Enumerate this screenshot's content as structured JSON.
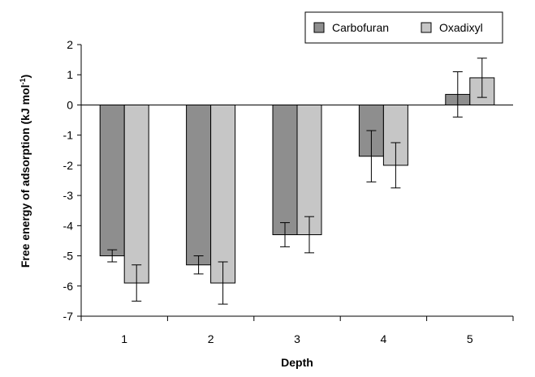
{
  "chart_data": {
    "type": "bar",
    "title": "",
    "xlabel": "Depth",
    "ylabel": "Free energy of adsorption (kJ mol",
    "ylabel_superscript": "-1",
    "ylabel_close": ")",
    "categories": [
      "1",
      "2",
      "3",
      "4",
      "5"
    ],
    "ylim": [
      -7,
      2
    ],
    "yticks": [
      2,
      1,
      0,
      -1,
      -2,
      -3,
      -4,
      -5,
      -6,
      -7
    ],
    "grid": false,
    "legend_position": "top-right",
    "series": [
      {
        "name": "Carbofuran",
        "color": "#8e8e8e",
        "values": [
          -5.0,
          -5.3,
          -4.3,
          -1.7,
          0.35
        ],
        "errors": [
          0.2,
          0.3,
          0.4,
          0.85,
          0.75
        ]
      },
      {
        "name": "Oxadixyl",
        "color": "#c6c6c6",
        "values": [
          -5.9,
          -5.9,
          -4.3,
          -2.0,
          0.9
        ],
        "errors": [
          0.6,
          0.7,
          0.6,
          0.75,
          0.65
        ]
      }
    ]
  }
}
